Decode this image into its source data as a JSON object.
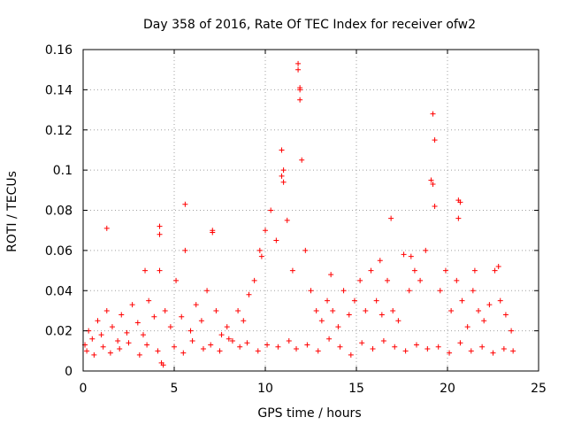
{
  "chart_data": {
    "type": "scatter",
    "title": "Day 358 of 2016, Rate Of TEC Index for receiver ofw2",
    "xlabel": "GPS time / hours",
    "ylabel": "ROTI / TECUs",
    "xlim": [
      0,
      25
    ],
    "ylim": [
      0,
      0.16
    ],
    "grid": true,
    "marker": "+",
    "color": "#ff0000",
    "xticks": [
      0,
      5,
      10,
      15,
      20,
      25
    ],
    "xtick_labels": [
      "0",
      "5",
      "10",
      "15",
      "20",
      "25"
    ],
    "yticks": [
      0,
      0.02,
      0.04,
      0.06,
      0.08,
      0.1,
      0.12,
      0.14,
      0.16
    ],
    "ytick_labels": [
      "0",
      "0.02",
      "0.04",
      "0.06",
      "0.08",
      "0.1",
      "0.12",
      "0.14",
      "0.16"
    ],
    "series": [
      {
        "name": "ROTI",
        "x": [
          0.1,
          0.3,
          0.5,
          0.8,
          1.0,
          1.3,
          1.6,
          1.9,
          2.1,
          2.4,
          2.7,
          3.0,
          3.3,
          3.6,
          3.9,
          4.2,
          4.2,
          4.3,
          4.5,
          4.8,
          5.1,
          5.4,
          5.6,
          5.9,
          6.2,
          6.5,
          6.8,
          7.1,
          7.3,
          7.6,
          7.9,
          8.2,
          8.5,
          8.8,
          9.1,
          9.4,
          9.7,
          10.0,
          10.3,
          10.6,
          10.9,
          11.0,
          11.2,
          11.5,
          11.8,
          11.9,
          11.9,
          12.0,
          12.2,
          12.5,
          12.8,
          13.1,
          13.4,
          13.7,
          14.0,
          14.3,
          14.6,
          14.9,
          15.2,
          15.5,
          15.8,
          16.1,
          16.4,
          16.7,
          17.0,
          17.3,
          17.6,
          17.9,
          18.2,
          18.5,
          18.8,
          19.1,
          19.2,
          19.3,
          19.3,
          19.6,
          19.9,
          20.2,
          20.5,
          20.6,
          20.8,
          21.1,
          21.4,
          21.7,
          22.0,
          22.3,
          22.6,
          22.9,
          23.2,
          23.5,
          0.2,
          0.6,
          1.1,
          1.5,
          2.0,
          2.5,
          3.1,
          3.5,
          4.1,
          4.4,
          5.0,
          5.5,
          6.0,
          6.6,
          7.0,
          7.5,
          8.0,
          8.6,
          9.0,
          9.6,
          10.1,
          10.7,
          11.3,
          11.7,
          12.3,
          12.9,
          13.5,
          14.1,
          14.7,
          15.3,
          15.9,
          16.5,
          17.1,
          17.7,
          18.3,
          18.9,
          19.5,
          20.1,
          20.7,
          21.3,
          21.9,
          22.5,
          23.1,
          23.6,
          1.3,
          4.2,
          5.6,
          7.1,
          10.9,
          11.0,
          11.8,
          11.9,
          16.9,
          18.0,
          19.2,
          20.6,
          20.7,
          3.4,
          9.8,
          13.6,
          16.3,
          21.5,
          22.8
        ],
        "y": [
          0.013,
          0.02,
          0.016,
          0.025,
          0.018,
          0.03,
          0.022,
          0.015,
          0.028,
          0.019,
          0.033,
          0.024,
          0.018,
          0.035,
          0.027,
          0.068,
          0.05,
          0.004,
          0.03,
          0.022,
          0.045,
          0.027,
          0.06,
          0.02,
          0.033,
          0.025,
          0.04,
          0.07,
          0.03,
          0.018,
          0.022,
          0.015,
          0.03,
          0.025,
          0.038,
          0.045,
          0.06,
          0.07,
          0.08,
          0.065,
          0.11,
          0.1,
          0.075,
          0.05,
          0.153,
          0.14,
          0.135,
          0.105,
          0.06,
          0.04,
          0.03,
          0.025,
          0.035,
          0.03,
          0.022,
          0.04,
          0.028,
          0.035,
          0.045,
          0.03,
          0.05,
          0.035,
          0.028,
          0.045,
          0.03,
          0.025,
          0.058,
          0.04,
          0.05,
          0.045,
          0.06,
          0.095,
          0.128,
          0.115,
          0.082,
          0.04,
          0.05,
          0.03,
          0.045,
          0.085,
          0.035,
          0.022,
          0.04,
          0.03,
          0.025,
          0.033,
          0.05,
          0.035,
          0.028,
          0.02,
          0.01,
          0.008,
          0.012,
          0.009,
          0.011,
          0.014,
          0.008,
          0.013,
          0.01,
          0.003,
          0.012,
          0.009,
          0.015,
          0.011,
          0.013,
          0.01,
          0.016,
          0.012,
          0.014,
          0.01,
          0.013,
          0.012,
          0.015,
          0.011,
          0.013,
          0.01,
          0.016,
          0.012,
          0.008,
          0.014,
          0.011,
          0.015,
          0.012,
          0.01,
          0.013,
          0.011,
          0.012,
          0.009,
          0.014,
          0.01,
          0.012,
          0.009,
          0.011,
          0.01,
          0.071,
          0.072,
          0.083,
          0.069,
          0.097,
          0.094,
          0.15,
          0.141,
          0.076,
          0.057,
          0.093,
          0.076,
          0.084,
          0.05,
          0.057,
          0.048,
          0.055,
          0.05,
          0.052
        ]
      }
    ]
  }
}
